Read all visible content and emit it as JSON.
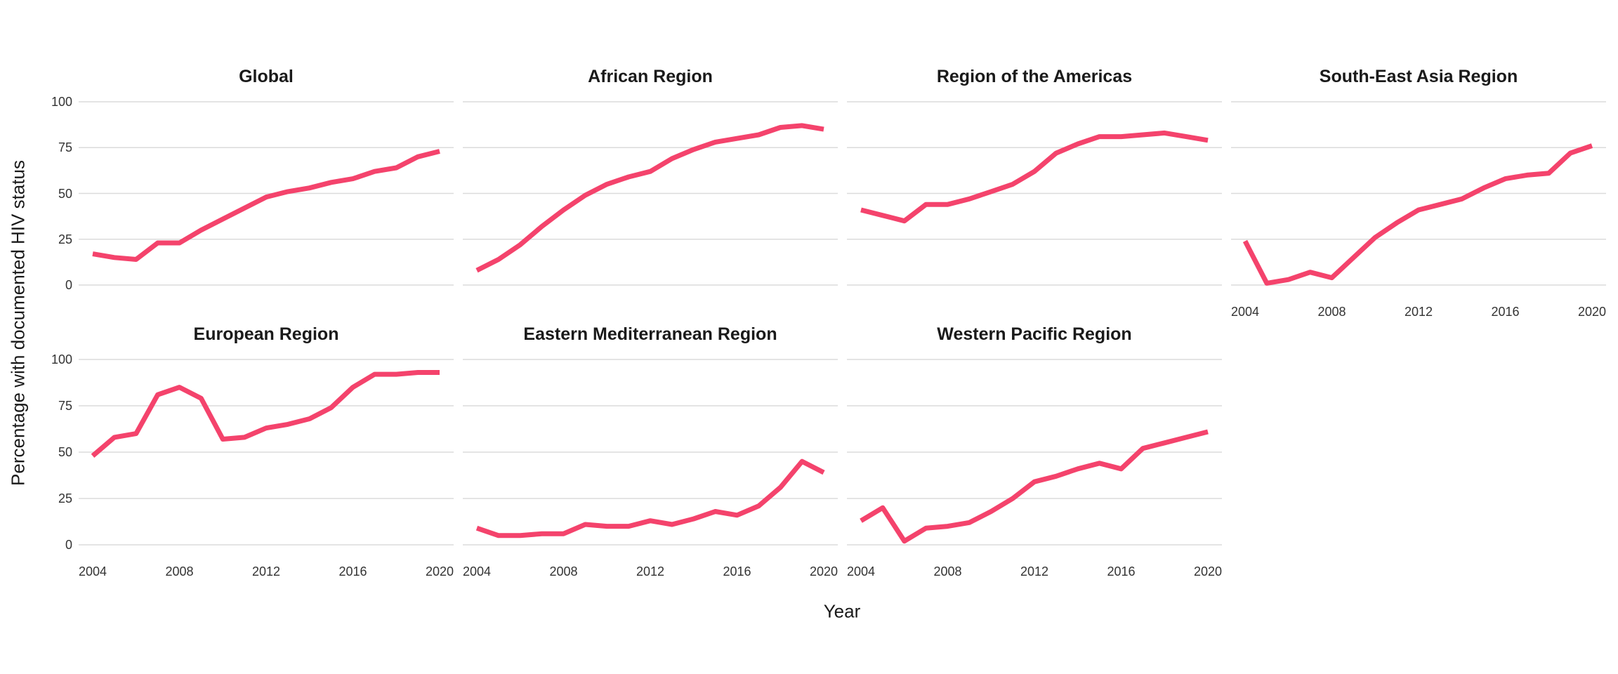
{
  "figure": {
    "y_axis_title": "Percentage with documented HIV status",
    "x_axis_title": "Year",
    "y_ticks": [
      100,
      75,
      50,
      25,
      0
    ],
    "x_ticks": [
      2004,
      2008,
      2012,
      2016,
      2020
    ],
    "line_color": "#f4436c",
    "grid_color": "#dbdbdb",
    "tick_label_color": "#333333",
    "title_color": "#1a1a1a",
    "background_color": "#ffffff"
  },
  "chart_data": {
    "type": "line",
    "faceted": true,
    "xlabel": "Year",
    "ylabel": "Percentage with documented HIV status",
    "ylim": [
      0,
      100
    ],
    "xlim": [
      2004,
      2020
    ],
    "grid": "horizontal-major-only",
    "legend_position": "none",
    "x": [
      2004,
      2005,
      2006,
      2007,
      2008,
      2009,
      2010,
      2011,
      2012,
      2013,
      2014,
      2015,
      2016,
      2017,
      2018,
      2019,
      2020
    ],
    "series": [
      {
        "name": "Global",
        "values": [
          17,
          15,
          14,
          23,
          23,
          30,
          36,
          42,
          48,
          51,
          53,
          56,
          58,
          62,
          64,
          70,
          73
        ]
      },
      {
        "name": "African Region",
        "values": [
          8,
          14,
          22,
          32,
          41,
          49,
          55,
          59,
          62,
          69,
          74,
          78,
          80,
          82,
          86,
          87,
          85
        ]
      },
      {
        "name": "Region of the Americas",
        "values": [
          41,
          38,
          35,
          44,
          44,
          47,
          51,
          55,
          62,
          72,
          77,
          81,
          81,
          82,
          83,
          81,
          79
        ]
      },
      {
        "name": "South-East Asia Region",
        "values": [
          24,
          1,
          3,
          7,
          4,
          15,
          26,
          34,
          41,
          44,
          47,
          53,
          58,
          60,
          61,
          72,
          76
        ]
      },
      {
        "name": "European Region",
        "values": [
          48,
          58,
          60,
          81,
          85,
          79,
          57,
          58,
          63,
          65,
          68,
          74,
          85,
          92,
          92,
          93,
          93
        ]
      },
      {
        "name": "Eastern Mediterranean Region",
        "values": [
          9,
          5,
          5,
          6,
          6,
          11,
          10,
          10,
          13,
          11,
          14,
          18,
          16,
          21,
          31,
          45,
          39
        ]
      },
      {
        "name": "Western Pacific Region",
        "values": [
          13,
          20,
          2,
          9,
          10,
          12,
          18,
          25,
          34,
          37,
          41,
          44,
          41,
          52,
          55,
          58,
          61
        ]
      }
    ]
  }
}
